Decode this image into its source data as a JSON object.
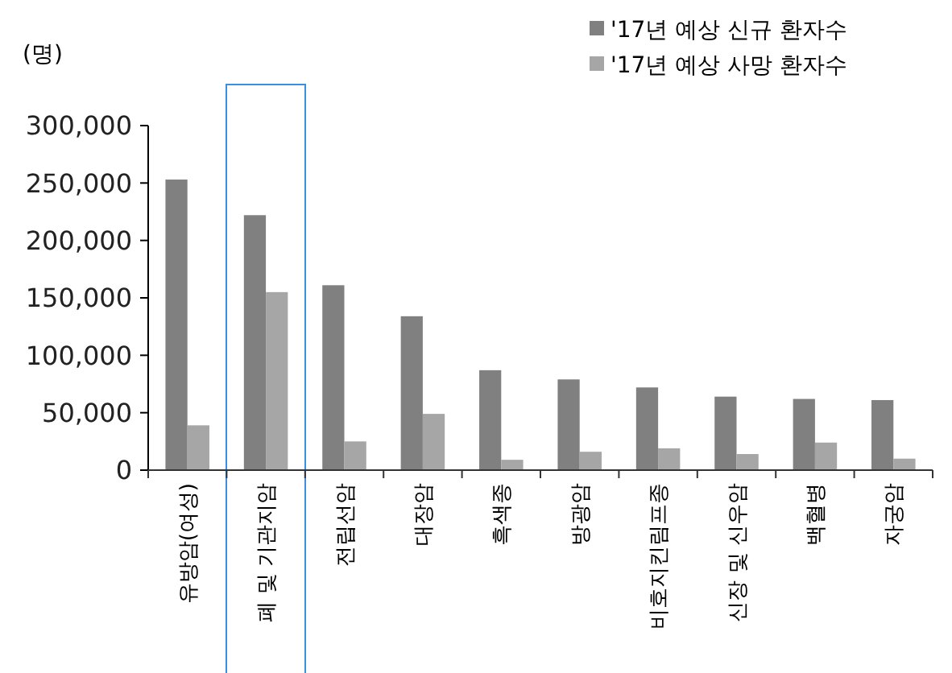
{
  "chart_data": {
    "type": "bar",
    "ylabel": "(명)",
    "categories": [
      "유방암(여성)",
      "폐 및 기관지암",
      "전립선암",
      "대장암",
      "흑색종",
      "방광암",
      "비호지킨림프종",
      "신장 및 신우암",
      "백혈병",
      "자궁암"
    ],
    "series": [
      {
        "name": "'17년 예상 신규 환자수",
        "color": "#808080",
        "values": [
          253000,
          222000,
          161000,
          134000,
          87000,
          79000,
          72000,
          64000,
          62000,
          61000
        ]
      },
      {
        "name": "'17년 예상 사망 환자수",
        "color": "#a6a6a6",
        "values": [
          39000,
          155000,
          25000,
          49000,
          9000,
          16000,
          19000,
          14000,
          24000,
          10000
        ]
      }
    ],
    "ylim": [
      0,
      300000
    ],
    "yticks": [
      {
        "value": 0,
        "label": "0"
      },
      {
        "value": 50000,
        "label": "50,000"
      },
      {
        "value": 100000,
        "label": "100,000"
      },
      {
        "value": 150000,
        "label": "150,000"
      },
      {
        "value": 200000,
        "label": "200,000"
      },
      {
        "value": 250000,
        "label": "250,000"
      },
      {
        "value": 300000,
        "label": "300,000"
      }
    ],
    "grid": false,
    "legend": "top right"
  }
}
